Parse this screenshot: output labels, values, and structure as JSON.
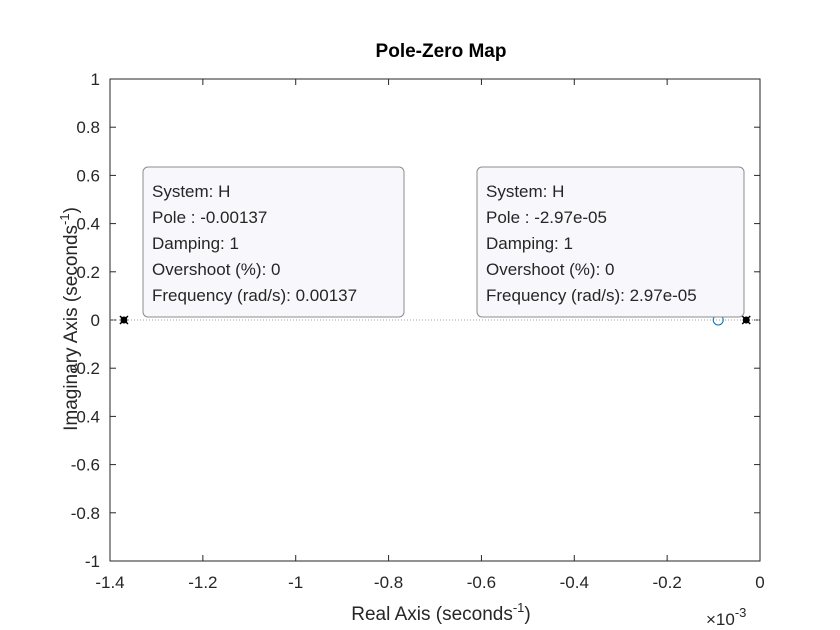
{
  "chart_data": {
    "type": "scatter",
    "title": "Pole-Zero Map",
    "xlabel": "Real Axis (seconds",
    "xlabel_sup": "-1",
    "xlabel_close": ")",
    "ylabel": "Imaginary Axis (seconds",
    "ylabel_sup": "-1",
    "ylabel_close": ")",
    "xlim": [
      -1.4,
      0
    ],
    "ylim": [
      -1,
      1
    ],
    "x_scale_base": "×10",
    "x_scale_exponent": "-3",
    "xticks": [
      -1.4,
      -1.2,
      -1,
      -0.8,
      -0.6,
      -0.4,
      -0.2,
      0
    ],
    "xtick_labels": [
      "-1.4",
      "-1.2",
      "-1",
      "-0.8",
      "-0.6",
      "-0.4",
      "-0.2",
      "0"
    ],
    "yticks": [
      -1,
      -0.8,
      -0.6,
      -0.4,
      -0.2,
      0,
      0.2,
      0.4,
      0.6,
      0.8,
      1
    ],
    "ytick_labels": [
      "-1",
      "-0.8",
      "-0.6",
      "-0.4",
      "-0.2",
      "0",
      "0.2",
      "0.4",
      "0.6",
      "0.8",
      "1"
    ],
    "poles": [
      {
        "x": -1.37,
        "y": 0
      },
      {
        "x": -0.0297,
        "y": 0
      }
    ],
    "zeros": [
      {
        "x": -0.09,
        "y": 0
      }
    ],
    "datatips": [
      {
        "target_x": -1.37,
        "lines": [
          "System: H",
          "Pole : -0.00137",
          "Damping: 1",
          "Overshoot (%): 0",
          "Frequency (rad/s): 0.00137"
        ]
      },
      {
        "target_x": -0.0297,
        "lines": [
          "System: H",
          "Pole : -2.97e-05",
          "Damping: 1",
          "Overshoot (%): 0",
          "Frequency (rad/s): 2.97e-05"
        ]
      }
    ],
    "colors": {
      "axis": "#262626",
      "zero_marker": "#0072BD",
      "pole_marker": "#000000",
      "datatip_bg": "#F8F8FC",
      "datatip_border": "#8C8C8C",
      "zero_line": "#A0A0A0"
    },
    "grid": false
  }
}
